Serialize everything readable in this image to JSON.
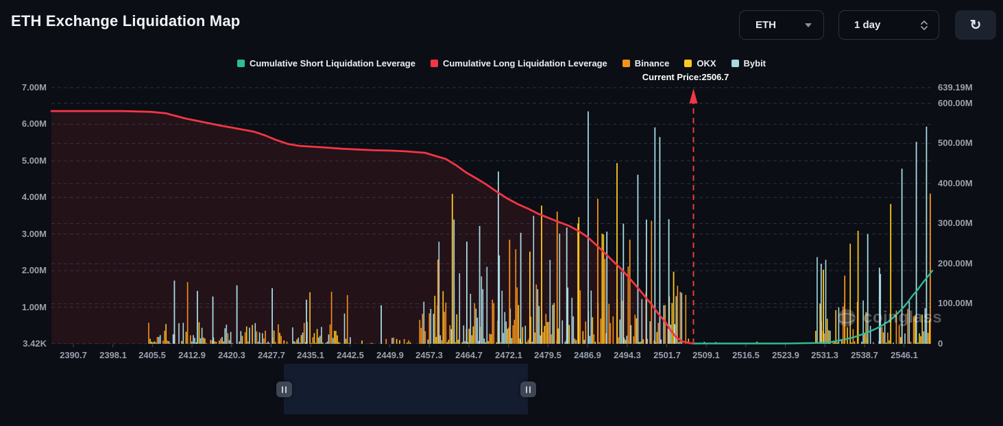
{
  "header": {
    "title": "ETH Exchange Liquidation Map"
  },
  "controls": {
    "symbol": "ETH",
    "interval": "1 day",
    "refresh_icon": "refresh-icon"
  },
  "chart_data": {
    "type": "mixed",
    "title": "ETH Exchange Liquidation Map",
    "watermark": "coinglass",
    "current_price": 2506.7,
    "current_price_label": "Current Price:2506.7",
    "colors": {
      "short": "#2ebd96",
      "long": "#f23645",
      "binance": "#f7931a",
      "okx": "#ffc81e",
      "bybit": "#a7d9e2",
      "grid": "#394050",
      "tick": "#434b5a",
      "long_fill": "rgba(242,54,69,0.11)",
      "current_price_line": "#f23645"
    },
    "legend": [
      {
        "label": "Cumulative Short Liquidation Leverage",
        "color_key": "short"
      },
      {
        "label": "Cumulative Long Liquidation Leverage",
        "color_key": "long"
      },
      {
        "label": "Binance",
        "color_key": "binance"
      },
      {
        "label": "OKX",
        "color_key": "okx"
      },
      {
        "label": "Bybit",
        "color_key": "bybit"
      }
    ],
    "left_axis": {
      "title": "cumulative leverage (left)",
      "ticks": [
        [
          "7.00M",
          7
        ],
        [
          "6.00M",
          6
        ],
        [
          "5.00M",
          5
        ],
        [
          "4.00M",
          4
        ],
        [
          "3.00M",
          3
        ],
        [
          "2.00M",
          2
        ],
        [
          "1.00M",
          1
        ],
        [
          "3.42K",
          0.00342
        ]
      ],
      "max": "7.00M",
      "min": "3.42K"
    },
    "right_axis": {
      "title": "liquidation leverage (right)",
      "ticks": [
        [
          "639.19M",
          639.19
        ],
        [
          "600.00M",
          600
        ],
        [
          "500.00M",
          500
        ],
        [
          "400.00M",
          400
        ],
        [
          "300.00M",
          300
        ],
        [
          "200.00M",
          200
        ],
        [
          "100.00M",
          100
        ],
        [
          "0",
          0
        ]
      ],
      "max": "639.19M",
      "min": "0"
    },
    "x_axis": {
      "ticks": [
        "2390.7",
        "2398.1",
        "2405.5",
        "2412.9",
        "2420.3",
        "2427.7",
        "2435.1",
        "2442.5",
        "2449.9",
        "2457.3",
        "2464.7",
        "2472.1",
        "2479.5",
        "2486.9",
        "2494.3",
        "2501.7",
        "2509.1",
        "2516.5",
        "2523.9",
        "2531.3",
        "2538.7",
        "2546.1"
      ],
      "tick_step": 7.4
    },
    "series": [
      {
        "name": "Cumulative Long Liquidation Leverage",
        "type": "line",
        "axis": "left",
        "color_key": "long",
        "filled": true,
        "points": [
          [
            2386.6,
            6.36
          ],
          [
            2400,
            6.36
          ],
          [
            2405.2,
            6.34
          ],
          [
            2408,
            6.3
          ],
          [
            2411.6,
            6.16
          ],
          [
            2415,
            6.06
          ],
          [
            2418,
            5.97
          ],
          [
            2421,
            5.89
          ],
          [
            2424.4,
            5.8
          ],
          [
            2426.5,
            5.7
          ],
          [
            2428.5,
            5.58
          ],
          [
            2430.9,
            5.46
          ],
          [
            2433,
            5.41
          ],
          [
            2437.3,
            5.37
          ],
          [
            2441,
            5.33
          ],
          [
            2444,
            5.31
          ],
          [
            2447,
            5.29
          ],
          [
            2450,
            5.28
          ],
          [
            2453,
            5.26
          ],
          [
            2456.5,
            5.22
          ],
          [
            2458.5,
            5.13
          ],
          [
            2460.4,
            5.05
          ],
          [
            2462.3,
            4.88
          ],
          [
            2464.2,
            4.68
          ],
          [
            2466.1,
            4.52
          ],
          [
            2468.1,
            4.34
          ],
          [
            2470,
            4.15
          ],
          [
            2471.9,
            3.97
          ],
          [
            2473.8,
            3.82
          ],
          [
            2475.8,
            3.69
          ],
          [
            2477.7,
            3.55
          ],
          [
            2479.6,
            3.44
          ],
          [
            2481.5,
            3.33
          ],
          [
            2483.5,
            3.22
          ],
          [
            2485,
            3.1
          ],
          [
            2486.7,
            2.94
          ],
          [
            2488.3,
            2.73
          ],
          [
            2489.9,
            2.51
          ],
          [
            2491.5,
            2.28
          ],
          [
            2493.1,
            2.06
          ],
          [
            2494.7,
            1.8
          ],
          [
            2496.3,
            1.53
          ],
          [
            2497.6,
            1.3
          ],
          [
            2498.9,
            1.07
          ],
          [
            2500.1,
            0.83
          ],
          [
            2501.4,
            0.6
          ],
          [
            2502.4,
            0.38
          ],
          [
            2503.4,
            0.19
          ],
          [
            2504.7,
            0.06
          ],
          [
            2506,
            0.02
          ],
          [
            2506.7,
            0.01
          ]
        ]
      },
      {
        "name": "Cumulative Short Liquidation Leverage",
        "type": "line",
        "axis": "left",
        "color_key": "short",
        "filled": false,
        "points": [
          [
            2506.7,
            0.01
          ],
          [
            2512,
            0.01
          ],
          [
            2518,
            0.01
          ],
          [
            2524,
            0.01
          ],
          [
            2528.5,
            0.02
          ],
          [
            2530.9,
            0.03
          ],
          [
            2532.5,
            0.05
          ],
          [
            2533.5,
            0.08
          ],
          [
            2535,
            0.12
          ],
          [
            2536.7,
            0.18
          ],
          [
            2538.3,
            0.26
          ],
          [
            2539.9,
            0.35
          ],
          [
            2541.5,
            0.46
          ],
          [
            2543.1,
            0.6
          ],
          [
            2544.4,
            0.76
          ],
          [
            2545.7,
            0.95
          ],
          [
            2546.7,
            1.12
          ],
          [
            2547.6,
            1.3
          ],
          [
            2548.6,
            1.47
          ],
          [
            2549.5,
            1.65
          ],
          [
            2550.5,
            1.83
          ],
          [
            2551.4,
            2.0
          ]
        ]
      },
      {
        "name": "Binance",
        "type": "bar",
        "axis": "right",
        "color_key": "binance"
      },
      {
        "name": "OKX",
        "type": "bar",
        "axis": "right",
        "color_key": "okx"
      },
      {
        "name": "Bybit",
        "type": "bar",
        "axis": "right",
        "color_key": "bybit"
      }
    ],
    "bar_clusters": [
      {
        "from": 2404.8,
        "to": 2443.0,
        "step": 2.1,
        "density": 0.78,
        "base_min": 2,
        "base_max": 55,
        "spike_p": 0.05,
        "spike_max": 160,
        "weights": {
          "binance": 0.38,
          "okx": 0.3,
          "bybit": 0.32
        },
        "seed": 7
      },
      {
        "from": 2443.0,
        "to": 2455.5,
        "step": 2.2,
        "density": 0.38,
        "base_min": 1,
        "base_max": 22,
        "spike_p": 0.04,
        "spike_max": 75,
        "weights": {
          "binance": 0.35,
          "okx": 0.4,
          "bybit": 0.25
        },
        "seed": 11
      },
      {
        "from": 2455.5,
        "to": 2505.8,
        "step": 2.0,
        "density": 0.88,
        "base_min": 4,
        "base_max": 150,
        "spike_p": 0.1,
        "spike_max": 330,
        "weights": {
          "binance": 0.34,
          "okx": 0.33,
          "bybit": 0.33
        },
        "seed": 23
      },
      {
        "from": 2507.5,
        "to": 2528.5,
        "step": 2.4,
        "density": 0.1,
        "base_min": 1,
        "base_max": 7,
        "spike_p": 0,
        "spike_max": 0,
        "weights": {
          "binance": 0.3,
          "okx": 0.4,
          "bybit": 0.3
        },
        "seed": 31
      },
      {
        "from": 2529.3,
        "to": 2551.3,
        "step": 2.1,
        "density": 0.72,
        "base_min": 3,
        "base_max": 110,
        "spike_p": 0.08,
        "spike_max": 260,
        "weights": {
          "binance": 0.3,
          "okx": 0.34,
          "bybit": 0.36
        },
        "seed": 41
      }
    ],
    "bar_spikes": [
      {
        "price": 2409.6,
        "value": 158,
        "exchange": "bybit"
      },
      {
        "price": 2413.9,
        "value": 132,
        "exchange": "bybit"
      },
      {
        "price": 2416.8,
        "value": 118,
        "exchange": "bybit"
      },
      {
        "price": 2421.3,
        "value": 146,
        "exchange": "bybit"
      },
      {
        "price": 2427.9,
        "value": 139,
        "exchange": "bybit"
      },
      {
        "price": 2434.3,
        "value": 110,
        "exchange": "bybit"
      },
      {
        "price": 2448.3,
        "value": 96,
        "exchange": "bybit"
      },
      {
        "price": 2458.9,
        "value": 210,
        "exchange": "binance"
      },
      {
        "price": 2461.6,
        "value": 374,
        "exchange": "okx"
      },
      {
        "price": 2461.9,
        "value": 310,
        "exchange": "bybit"
      },
      {
        "price": 2464.3,
        "value": 255,
        "exchange": "bybit"
      },
      {
        "price": 2466.7,
        "value": 294,
        "exchange": "bybit"
      },
      {
        "price": 2470.2,
        "value": 430,
        "exchange": "bybit"
      },
      {
        "price": 2472.3,
        "value": 260,
        "exchange": "binance"
      },
      {
        "price": 2474.4,
        "value": 277,
        "exchange": "bybit"
      },
      {
        "price": 2476.1,
        "value": 230,
        "exchange": "okx"
      },
      {
        "price": 2478.3,
        "value": 345,
        "exchange": "okx"
      },
      {
        "price": 2481.2,
        "value": 330,
        "exchange": "binance"
      },
      {
        "price": 2483.0,
        "value": 290,
        "exchange": "bybit"
      },
      {
        "price": 2485.1,
        "value": 300,
        "exchange": "okx"
      },
      {
        "price": 2487.0,
        "value": 580,
        "exchange": "bybit"
      },
      {
        "price": 2488.8,
        "value": 362,
        "exchange": "binance"
      },
      {
        "price": 2490.5,
        "value": 280,
        "exchange": "bybit"
      },
      {
        "price": 2492.4,
        "value": 451,
        "exchange": "okx"
      },
      {
        "price": 2493.6,
        "value": 300,
        "exchange": "bybit"
      },
      {
        "price": 2494.8,
        "value": 260,
        "exchange": "binance"
      },
      {
        "price": 2496.3,
        "value": 422,
        "exchange": "bybit"
      },
      {
        "price": 2497.9,
        "value": 310,
        "exchange": "bybit"
      },
      {
        "price": 2499.5,
        "value": 540,
        "exchange": "bybit"
      },
      {
        "price": 2500.4,
        "value": 516,
        "exchange": "bybit"
      },
      {
        "price": 2502.1,
        "value": 311,
        "exchange": "bybit"
      },
      {
        "price": 2503.0,
        "value": 180,
        "exchange": "okx"
      },
      {
        "price": 2530.6,
        "value": 200,
        "exchange": "bybit"
      },
      {
        "price": 2531.0,
        "value": 185,
        "exchange": "okx"
      },
      {
        "price": 2535.0,
        "value": 170,
        "exchange": "binance"
      },
      {
        "price": 2537.5,
        "value": 282,
        "exchange": "okx"
      },
      {
        "price": 2539.3,
        "value": 274,
        "exchange": "bybit"
      },
      {
        "price": 2541.5,
        "value": 190,
        "exchange": "bybit"
      },
      {
        "price": 2543.6,
        "value": 349,
        "exchange": "okx"
      },
      {
        "price": 2545.7,
        "value": 437,
        "exchange": "bybit"
      },
      {
        "price": 2548.4,
        "value": 504,
        "exchange": "bybit"
      },
      {
        "price": 2550.3,
        "value": 542,
        "exchange": "bybit"
      },
      {
        "price": 2551.0,
        "value": 375,
        "exchange": "binance"
      }
    ]
  },
  "brush": {
    "left_handle": "pause-handle",
    "right_handle": "pause-handle"
  }
}
